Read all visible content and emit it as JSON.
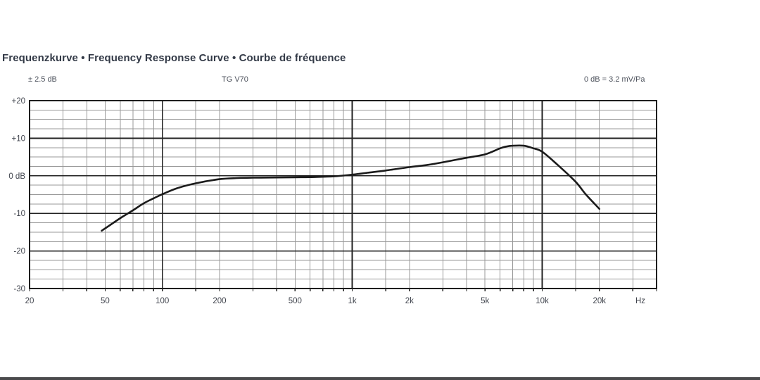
{
  "page": {
    "title": "Frequenzkurve • Frequency Response Curve • Courbe de fréquence"
  },
  "chart_header": {
    "tolerance": "± 2.5 dB",
    "model": "TG V70",
    "sensitivity": "0 dB = 3.2 mV/Pa"
  },
  "colors": {
    "curve": "#1b1b1b",
    "grid_minor": "#999999",
    "grid_major": "#222222",
    "border": "#1e1e1e",
    "tick_text": "#40444d",
    "title_text": "#333a47",
    "bottom_bar": "#4a4a4c"
  },
  "chart_data": {
    "type": "line",
    "title": "TG V70 frequency response",
    "xlabel": "Hz",
    "ylabel": "dB",
    "x_scale": "log",
    "xlim": [
      20,
      40000
    ],
    "ylim": [
      -30,
      20
    ],
    "grid": true,
    "y_minor_step": 2.5,
    "y_ticks": [
      {
        "v": 20,
        "label": "+20"
      },
      {
        "v": 10,
        "label": "+10"
      },
      {
        "v": 0,
        "label": "0 dB"
      },
      {
        "v": -10,
        "label": "-10"
      },
      {
        "v": -20,
        "label": "-20"
      },
      {
        "v": -30,
        "label": "-30"
      }
    ],
    "x_gridlines": [
      20,
      30,
      40,
      50,
      60,
      70,
      80,
      90,
      100,
      150,
      200,
      300,
      400,
      500,
      600,
      700,
      800,
      900,
      1000,
      1500,
      2000,
      3000,
      4000,
      5000,
      6000,
      7000,
      8000,
      9000,
      10000,
      15000,
      20000,
      30000,
      40000
    ],
    "x_major_gridlines": [
      100,
      1000,
      10000
    ],
    "x_ticks": [
      {
        "f": 20,
        "label": "20"
      },
      {
        "f": 50,
        "label": "50"
      },
      {
        "f": 100,
        "label": "100"
      },
      {
        "f": 200,
        "label": "200"
      },
      {
        "f": 500,
        "label": "500"
      },
      {
        "f": 1000,
        "label": "1k"
      },
      {
        "f": 2000,
        "label": "2k"
      },
      {
        "f": 5000,
        "label": "5k"
      },
      {
        "f": 10000,
        "label": "10k"
      },
      {
        "f": 20000,
        "label": "20k"
      }
    ],
    "x_unit_label": "Hz",
    "series": [
      {
        "name": "frequency-response-curve",
        "points": [
          [
            48,
            -14.6
          ],
          [
            50,
            -14.0
          ],
          [
            60,
            -11.3
          ],
          [
            70,
            -9.2
          ],
          [
            80,
            -7.3
          ],
          [
            90,
            -6.0
          ],
          [
            100,
            -4.9
          ],
          [
            120,
            -3.3
          ],
          [
            150,
            -2.0
          ],
          [
            200,
            -0.9
          ],
          [
            250,
            -0.6
          ],
          [
            300,
            -0.5
          ],
          [
            400,
            -0.45
          ],
          [
            500,
            -0.4
          ],
          [
            600,
            -0.35
          ],
          [
            800,
            -0.15
          ],
          [
            1000,
            0.3
          ],
          [
            1200,
            0.8
          ],
          [
            1500,
            1.4
          ],
          [
            2000,
            2.3
          ],
          [
            2500,
            2.9
          ],
          [
            3000,
            3.6
          ],
          [
            4000,
            4.8
          ],
          [
            5000,
            5.7
          ],
          [
            6000,
            7.3
          ],
          [
            6500,
            7.8
          ],
          [
            7000,
            8.0
          ],
          [
            8000,
            8.0
          ],
          [
            9000,
            7.3
          ],
          [
            10000,
            6.4
          ],
          [
            12000,
            3.0
          ],
          [
            15000,
            -1.6
          ],
          [
            17000,
            -5.0
          ],
          [
            20000,
            -8.8
          ]
        ]
      }
    ]
  }
}
